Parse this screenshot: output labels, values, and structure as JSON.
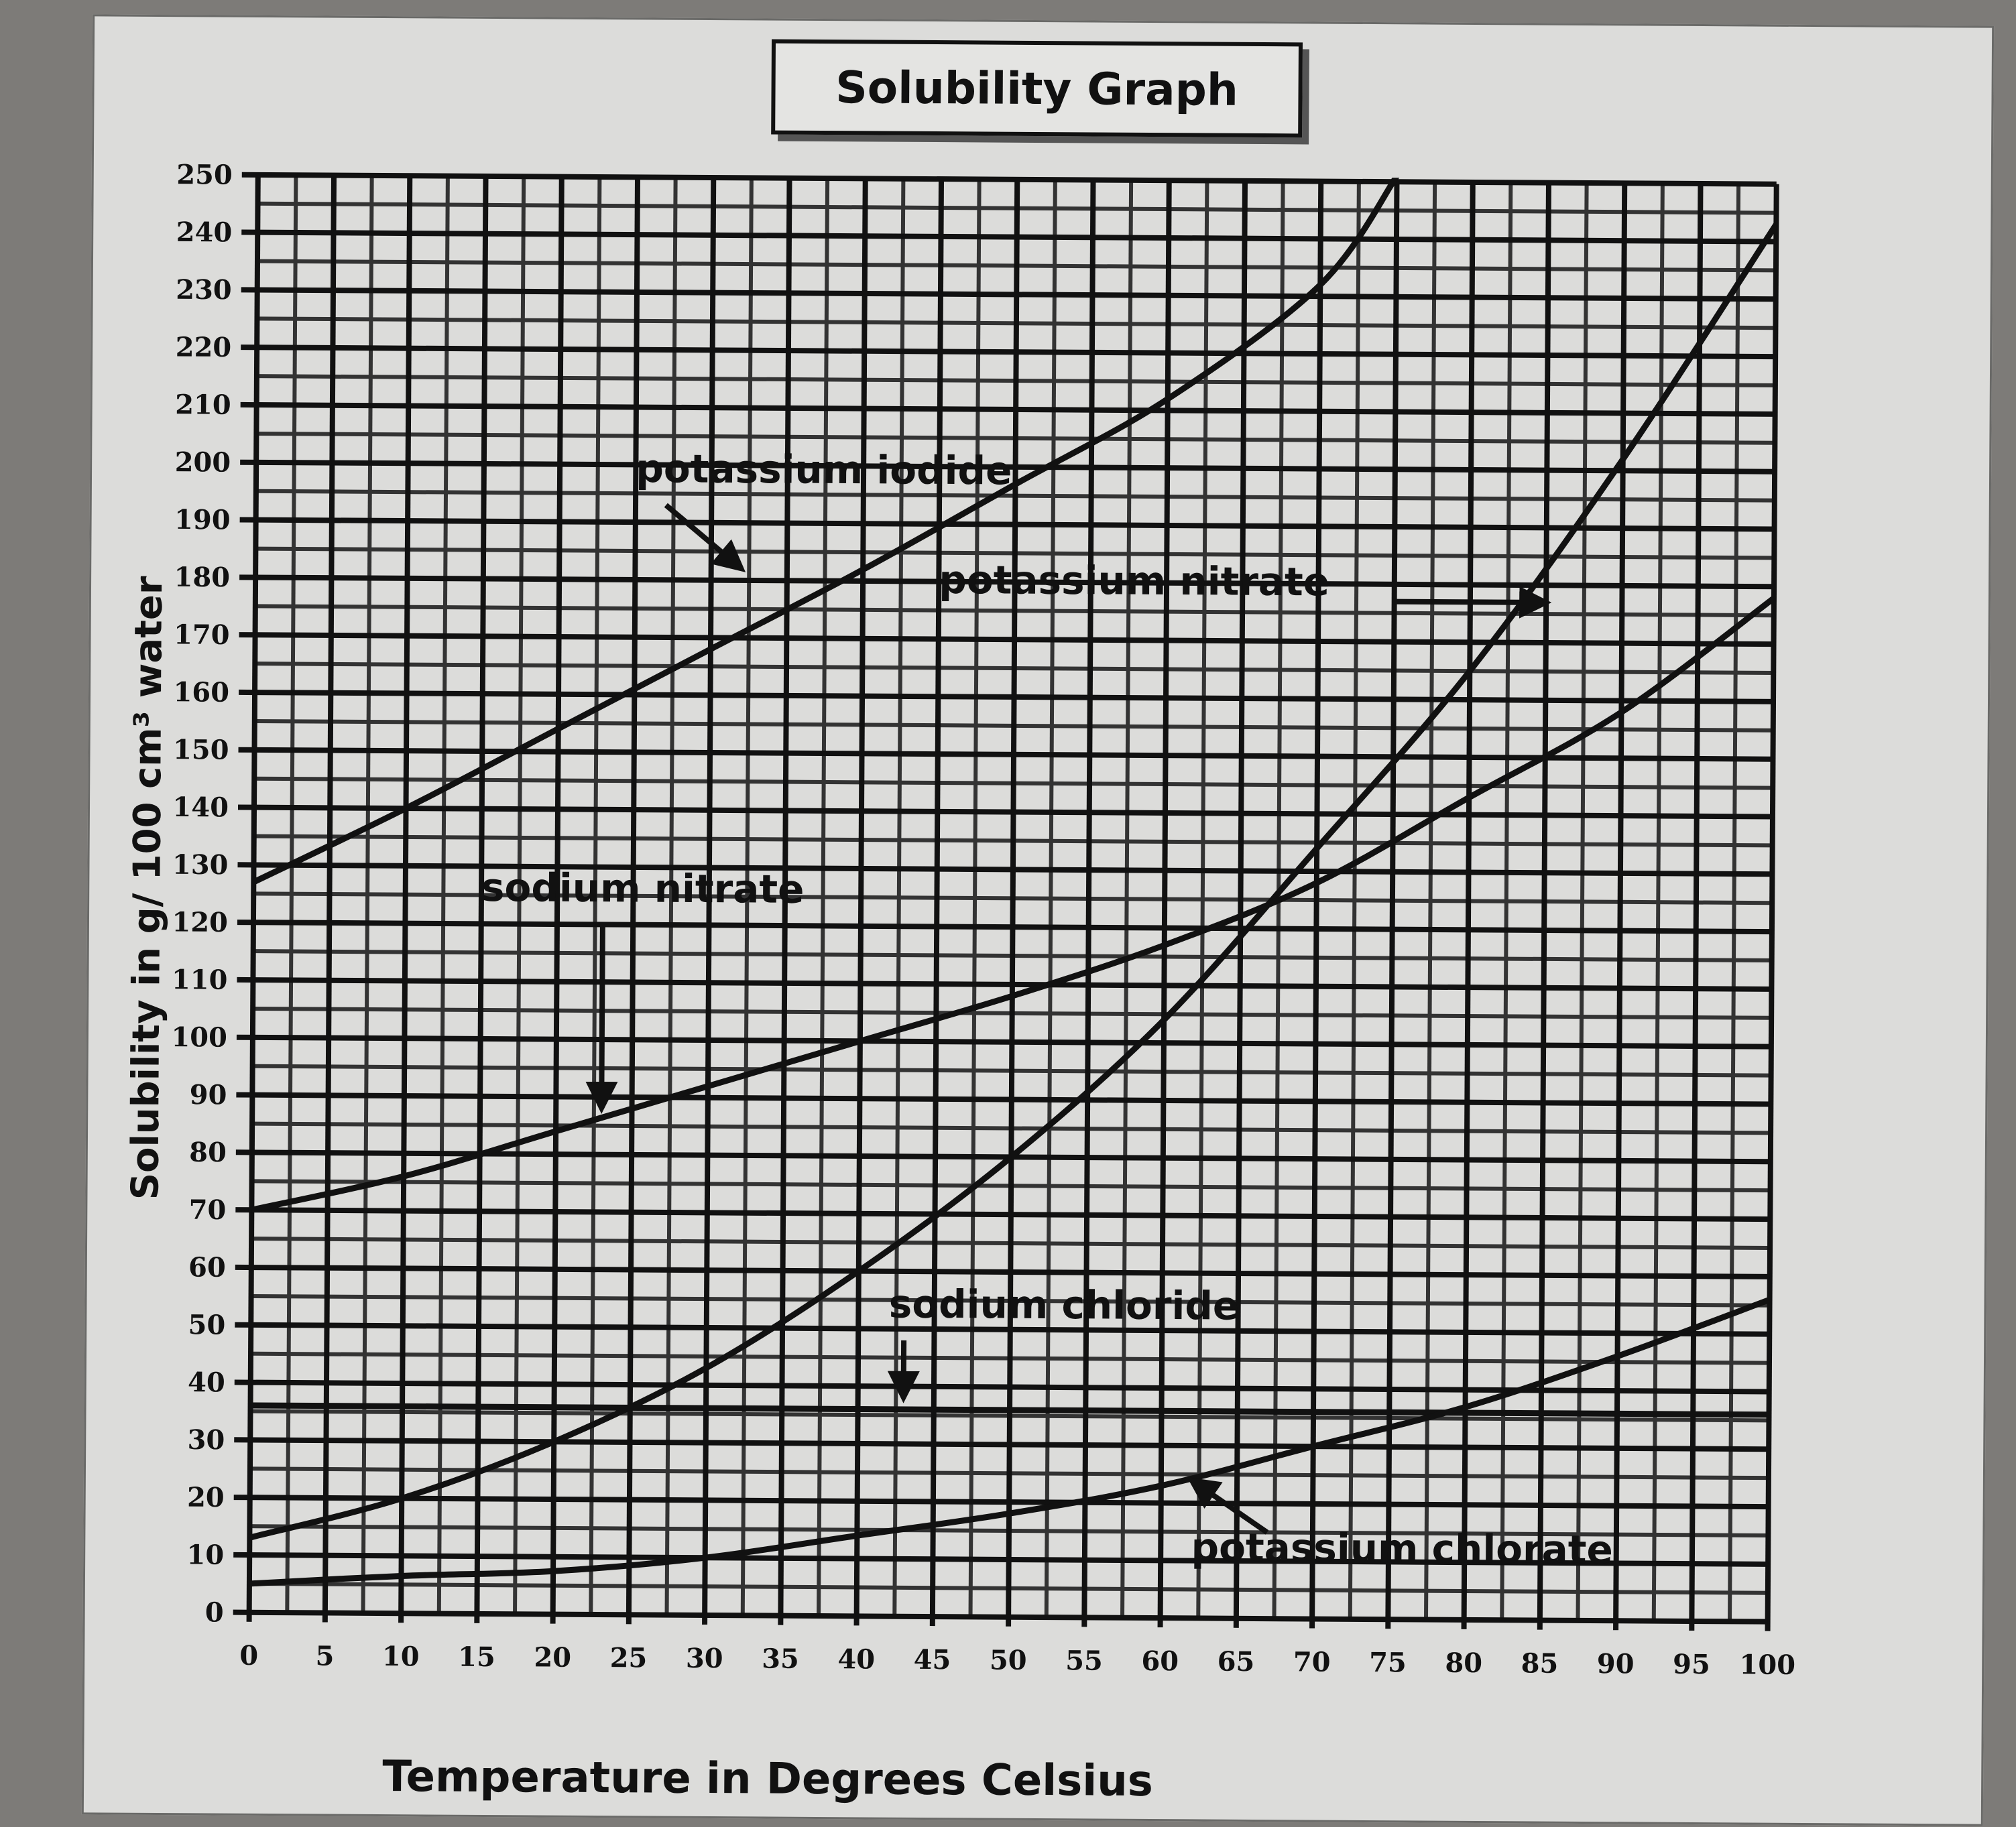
{
  "chart_data": {
    "type": "line",
    "title": "Solubility Graph",
    "xlabel": "Temperature in Degrees Celsius",
    "ylabel": "Solubility in g/ 100 cm³ water",
    "xlim": [
      0,
      100
    ],
    "ylim": [
      0,
      250
    ],
    "x_ticks": [
      "0",
      "5",
      "10",
      "15",
      "20",
      "25",
      "30",
      "35",
      "40",
      "45",
      "50",
      "55",
      "60",
      "65",
      "70",
      "75",
      "80",
      "85",
      "90",
      "95",
      "100"
    ],
    "y_ticks": [
      "0",
      "10",
      "20",
      "30",
      "40",
      "50",
      "60",
      "70",
      "80",
      "90",
      "100",
      "110",
      "120",
      "130",
      "140",
      "150",
      "160",
      "170",
      "180",
      "190",
      "200",
      "210",
      "220",
      "230",
      "240",
      "250"
    ],
    "grid": true,
    "legend": "inline labels with arrows",
    "line_color": "#111111",
    "series": [
      {
        "name": "potassium iodide",
        "label": "potassium iodide",
        "x": [
          0,
          10,
          20,
          30,
          40,
          50,
          60,
          70,
          75
        ],
        "y": [
          127,
          140,
          154,
          168,
          182,
          197,
          212,
          232,
          251
        ]
      },
      {
        "name": "potassium nitrate",
        "label": "potassium nitrate",
        "x": [
          0,
          10,
          20,
          30,
          40,
          50,
          60,
          70,
          80,
          90,
          100
        ],
        "y": [
          13,
          20,
          30,
          43,
          60,
          80,
          104,
          134,
          165,
          202,
          243
        ]
      },
      {
        "name": "sodium nitrate",
        "label": "sodium nitrate",
        "x": [
          0,
          10,
          20,
          30,
          40,
          50,
          60,
          70,
          80,
          90,
          100
        ],
        "y": [
          70,
          76,
          84,
          92,
          100,
          108,
          117,
          128,
          143,
          158,
          178
        ]
      },
      {
        "name": "sodium chloride",
        "label": "sodium chloride",
        "x": [
          0,
          20,
          40,
          60,
          80,
          100
        ],
        "y": [
          36,
          36,
          36,
          36,
          36,
          36
        ]
      },
      {
        "name": "potassium chlorate",
        "label": "potassium chlorate",
        "x": [
          0,
          10,
          20,
          30,
          40,
          50,
          60,
          70,
          80,
          90,
          100
        ],
        "y": [
          5,
          6.5,
          7.5,
          10,
          14,
          18,
          23,
          30,
          37,
          46,
          56
        ]
      }
    ]
  }
}
